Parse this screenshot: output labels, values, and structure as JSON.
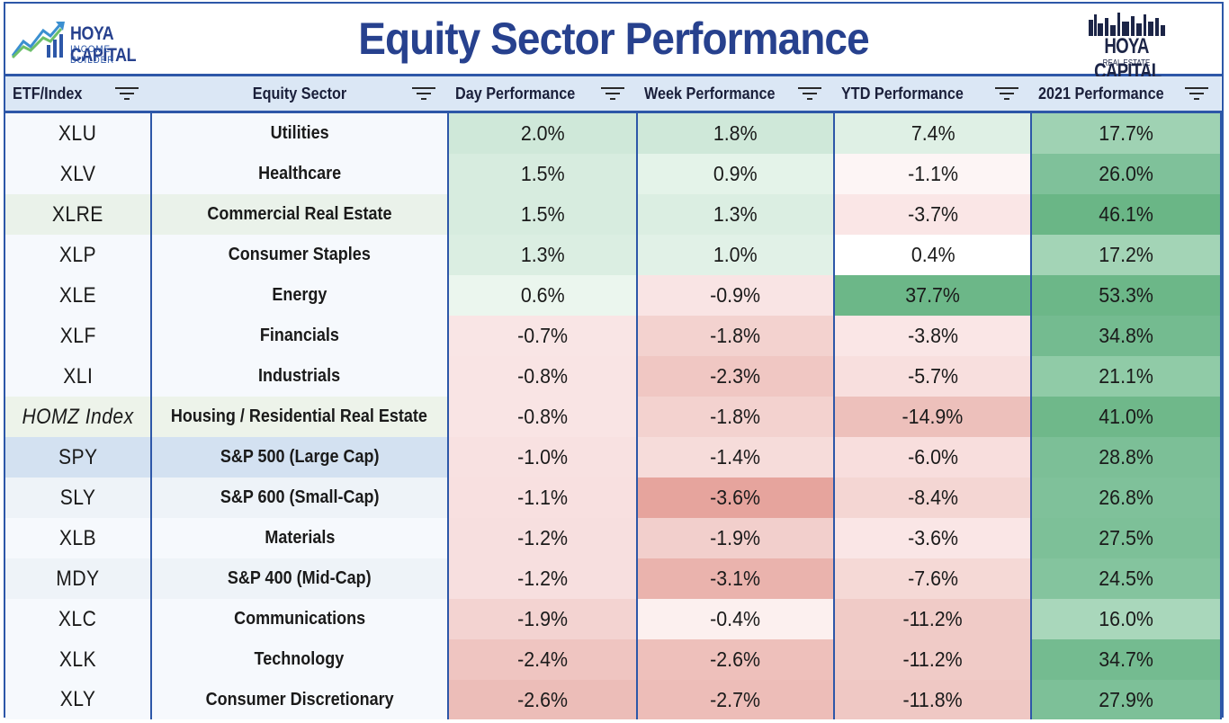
{
  "header": {
    "title": "Equity Sector Performance",
    "logo_left": {
      "line1": "HOYA CAPITAL",
      "line2": "INCOME BUILDER"
    },
    "logo_right": {
      "line1": "HOYA CAPITAL",
      "line2": "REAL ESTATE"
    }
  },
  "columns": [
    "ETF/Index",
    "Equity Sector",
    "Day Performance",
    "Week Performance",
    "YTD Performance",
    "2021 Performance"
  ],
  "colors": {
    "positive_strong": "#6cb788",
    "positive_light": "#e3f2e8",
    "negative_strong": "#dd8f86",
    "negative_light": "#fbecec",
    "border": "#2d57a8",
    "title": "#27418e"
  },
  "rows": [
    {
      "ticker": "XLU",
      "sector": "Utilities",
      "day": "2.0%",
      "week": "1.8%",
      "ytd": "7.4%",
      "y2021": "17.7%",
      "tickerBg": "#f6f9fd",
      "dayBg": "#cfe8d9",
      "weekBg": "#cfe8d9",
      "ytdBg": "#dff0e5",
      "y2021Bg": "#9fd2b3"
    },
    {
      "ticker": "XLV",
      "sector": "Healthcare",
      "day": "1.5%",
      "week": "0.9%",
      "ytd": "-1.1%",
      "y2021": "26.0%",
      "tickerBg": "#f6f9fd",
      "dayBg": "#d7ecdf",
      "weekBg": "#e4f3e9",
      "ytdBg": "#fdf5f5",
      "y2021Bg": "#7fc19a"
    },
    {
      "ticker": "XLRE",
      "sector": "Commercial Real Estate",
      "day": "1.5%",
      "week": "1.3%",
      "ytd": "-3.7%",
      "y2021": "46.1%",
      "tickerBg": "#eaf2ea",
      "dayBg": "#d7ecdf",
      "weekBg": "#dbeee2",
      "ytdBg": "#fae6e6",
      "y2021Bg": "#6ab686"
    },
    {
      "ticker": "XLP",
      "sector": "Consumer Staples",
      "day": "1.3%",
      "week": "1.0%",
      "ytd": "0.4%",
      "y2021": "17.2%",
      "tickerBg": "#f6f9fd",
      "dayBg": "#dbeee2",
      "weekBg": "#e1f1e7",
      "ytdBg": "#ffffff",
      "y2021Bg": "#a3d4b6"
    },
    {
      "ticker": "XLE",
      "sector": "Energy",
      "day": "0.6%",
      "week": "-0.9%",
      "ytd": "37.7%",
      "y2021": "53.3%",
      "tickerBg": "#f6f9fd",
      "dayBg": "#ebf6ee",
      "weekBg": "#f9e4e4",
      "ytdBg": "#6cb788",
      "y2021Bg": "#6cb788"
    },
    {
      "ticker": "XLF",
      "sector": "Financials",
      "day": "-0.7%",
      "week": "-1.8%",
      "ytd": "-3.8%",
      "y2021": "34.8%",
      "tickerBg": "#f6f9fd",
      "dayBg": "#f9e5e5",
      "weekBg": "#f3d2cf",
      "ytdBg": "#fae6e6",
      "y2021Bg": "#74bb90"
    },
    {
      "ticker": "XLI",
      "sector": "Industrials",
      "day": "-0.8%",
      "week": "-2.3%",
      "ytd": "-5.7%",
      "y2021": "21.1%",
      "tickerBg": "#f6f9fd",
      "dayBg": "#f9e4e4",
      "weekBg": "#f0c7c3",
      "ytdBg": "#f8dfde",
      "y2021Bg": "#90cba7"
    },
    {
      "ticker": "HOMZ Index",
      "sector": "Housing / Residential Real Estate",
      "day": "-0.8%",
      "week": "-1.8%",
      "ytd": "-14.9%",
      "y2021": "41.0%",
      "tickerBg": "#edf3ea",
      "dayBg": "#f9e4e4",
      "weekBg": "#f3d2cf",
      "ytdBg": "#edc0bb",
      "y2021Bg": "#6fb88a",
      "italic": true
    },
    {
      "ticker": "SPY",
      "sector": "S&P 500 (Large Cap)",
      "day": "-1.0%",
      "week": "-1.4%",
      "ytd": "-6.0%",
      "y2021": "28.8%",
      "tickerBg": "#d3e1f1",
      "sectorBg": "#d3e1f1",
      "dayBg": "#f8e1e1",
      "weekBg": "#f6dcda",
      "ytdBg": "#f8dedd",
      "y2021Bg": "#7cbf97"
    },
    {
      "ticker": "SLY",
      "sector": "S&P 600 (Small-Cap)",
      "day": "-1.1%",
      "week": "-3.6%",
      "ytd": "-8.4%",
      "y2021": "26.8%",
      "tickerBg": "#eef3f8",
      "sectorBg": "#eef3f8",
      "dayBg": "#f8e0e0",
      "weekBg": "#e6a49d",
      "ytdBg": "#f4d6d3",
      "y2021Bg": "#7fc19a"
    },
    {
      "ticker": "XLB",
      "sector": "Materials",
      "day": "-1.2%",
      "week": "-1.9%",
      "ytd": "-3.6%",
      "y2021": "27.5%",
      "tickerBg": "#f6f9fd",
      "dayBg": "#f7dfdf",
      "weekBg": "#f2cfcc",
      "ytdBg": "#fae6e6",
      "y2021Bg": "#7dc098"
    },
    {
      "ticker": "MDY",
      "sector": "S&P 400 (Mid-Cap)",
      "day": "-1.2%",
      "week": "-3.1%",
      "ytd": "-7.6%",
      "y2021": "24.5%",
      "tickerBg": "#eef3f8",
      "sectorBg": "#eef3f8",
      "dayBg": "#f7dfdf",
      "weekBg": "#eab3ad",
      "ytdBg": "#f5d9d6",
      "y2021Bg": "#84c49e"
    },
    {
      "ticker": "XLC",
      "sector": "Communications",
      "day": "-1.9%",
      "week": "-0.4%",
      "ytd": "-11.2%",
      "y2021": "16.0%",
      "tickerBg": "#f6f9fd",
      "dayBg": "#f3d3d1",
      "weekBg": "#fcf0ef",
      "ytdBg": "#f0cbc7",
      "y2021Bg": "#a9d7bb"
    },
    {
      "ticker": "XLK",
      "sector": "Technology",
      "day": "-2.4%",
      "week": "-2.6%",
      "ytd": "-11.2%",
      "y2021": "34.7%",
      "tickerBg": "#f6f9fd",
      "dayBg": "#efc5c1",
      "weekBg": "#eec0bb",
      "ytdBg": "#f0cbc7",
      "y2021Bg": "#74bb90"
    },
    {
      "ticker": "XLY",
      "sector": "Consumer Discretionary",
      "day": "-2.6%",
      "week": "-2.7%",
      "ytd": "-11.8%",
      "y2021": "27.9%",
      "tickerBg": "#f6f9fd",
      "dayBg": "#ecbdb8",
      "weekBg": "#edbdb8",
      "ytdBg": "#efc8c4",
      "y2021Bg": "#7dc098"
    }
  ]
}
